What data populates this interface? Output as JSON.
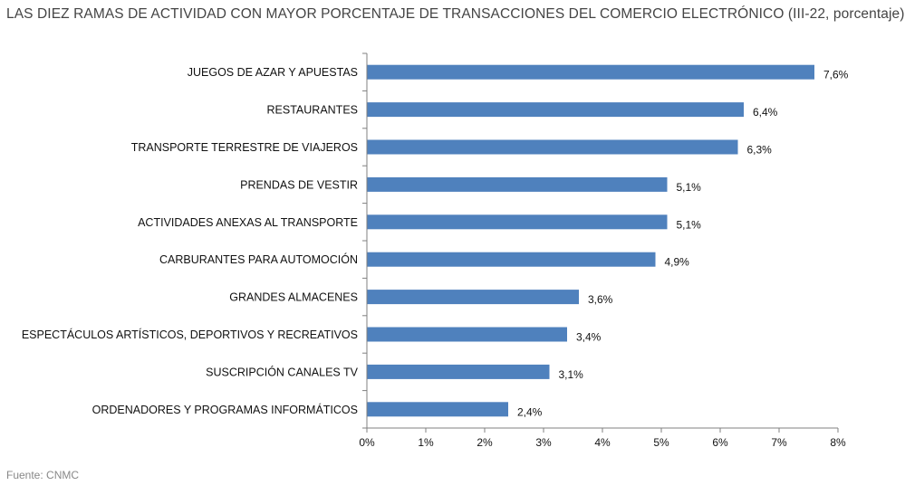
{
  "title": "LAS DIEZ RAMAS DE ACTIVIDAD CON MAYOR PORCENTAJE DE TRANSACCIONES DEL COMERCIO ELECTRÓNICO (III-22, porcentaje)",
  "source": "Fuente: CNMC",
  "colors": {
    "bar": "#4f81bd",
    "axis": "#808080",
    "text": "#111111",
    "title": "#444444"
  },
  "chart_data": {
    "type": "bar",
    "orientation": "horizontal",
    "title": "LAS DIEZ RAMAS DE ACTIVIDAD CON MAYOR PORCENTAJE DE TRANSACCIONES DEL COMERCIO ELECTRÓNICO (III-22, porcentaje)",
    "xlabel": "",
    "ylabel": "",
    "xlim": [
      0,
      8
    ],
    "grid": false,
    "categories": [
      "JUEGOS DE AZAR Y APUESTAS",
      "RESTAURANTES",
      "TRANSPORTE TERRESTRE DE VIAJEROS",
      "PRENDAS DE VESTIR",
      "ACTIVIDADES ANEXAS AL TRANSPORTE",
      "CARBURANTES PARA AUTOMOCIÓN",
      "GRANDES ALMACENES",
      "ESPECTÁCULOS ARTÍSTICOS, DEPORTIVOS Y RECREATIVOS",
      "SUSCRIPCIÓN CANALES TV",
      "ORDENADORES Y PROGRAMAS INFORMÁTICOS"
    ],
    "values": [
      7.6,
      6.4,
      6.3,
      5.1,
      5.1,
      4.9,
      3.6,
      3.4,
      3.1,
      2.4
    ],
    "data_labels": [
      "7,6%",
      "6,4%",
      "6,3%",
      "5,1%",
      "5,1%",
      "4,9%",
      "3,6%",
      "3,4%",
      "3,1%",
      "2,4%"
    ],
    "ticks": [
      0,
      1,
      2,
      3,
      4,
      5,
      6,
      7,
      8
    ],
    "tick_labels": [
      "0%",
      "1%",
      "2%",
      "3%",
      "4%",
      "5%",
      "6%",
      "7%",
      "8%"
    ]
  }
}
